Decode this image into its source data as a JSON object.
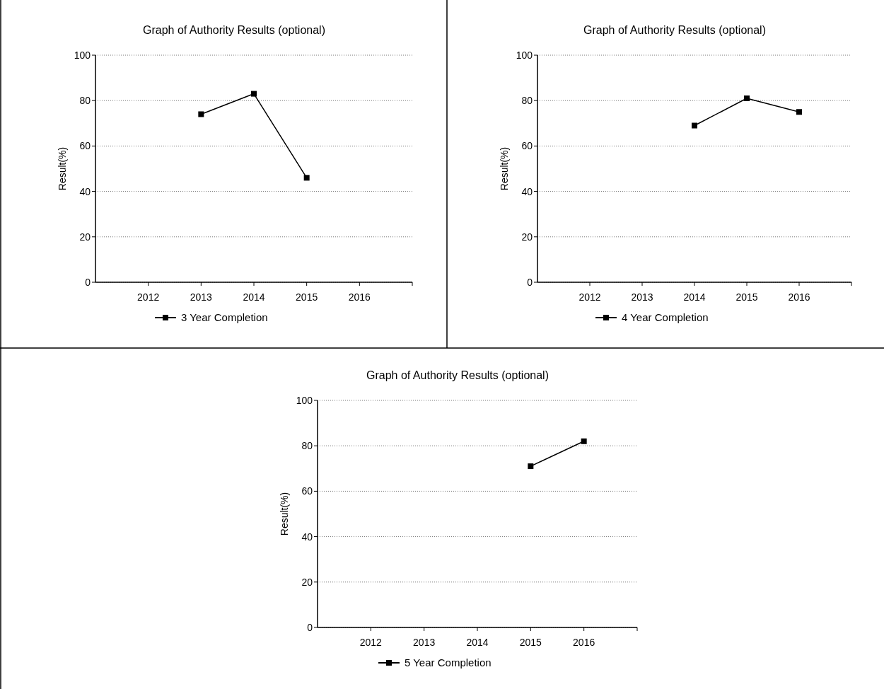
{
  "chart_data": [
    {
      "type": "line",
      "title": "Graph of Authority Results (optional)",
      "ylabel": "Result(%)",
      "categories": [
        "2012",
        "2013",
        "2014",
        "2015",
        "2016"
      ],
      "series": [
        {
          "name": "3 Year Completion",
          "color": "#000000",
          "values": [
            null,
            74,
            83,
            46,
            null
          ]
        }
      ],
      "ylim": [
        0,
        100
      ],
      "yticks": [
        0,
        20,
        40,
        60,
        80,
        100
      ],
      "grid": "y",
      "legend": "bottom",
      "marker": "square",
      "line_style": "solid"
    },
    {
      "type": "line",
      "title": "Graph of Authority Results (optional)",
      "ylabel": "Result(%)",
      "categories": [
        "2012",
        "2013",
        "2014",
        "2015",
        "2016"
      ],
      "series": [
        {
          "name": "4 Year Completion",
          "color": "#000000",
          "values": [
            null,
            null,
            69,
            81,
            75
          ]
        }
      ],
      "ylim": [
        0,
        100
      ],
      "yticks": [
        0,
        20,
        40,
        60,
        80,
        100
      ],
      "grid": "y",
      "legend": "bottom",
      "marker": "square",
      "line_style": "solid"
    },
    {
      "type": "line",
      "title": "Graph of Authority Results (optional)",
      "ylabel": "Result(%)",
      "categories": [
        "2012",
        "2013",
        "2014",
        "2015",
        "2016"
      ],
      "series": [
        {
          "name": "5 Year Completion",
          "color": "#000000",
          "values": [
            null,
            null,
            null,
            71,
            82
          ]
        }
      ],
      "ylim": [
        0,
        100
      ],
      "yticks": [
        0,
        20,
        40,
        60,
        80,
        100
      ],
      "grid": "y",
      "legend": "bottom",
      "marker": "square",
      "line_style": "solid"
    }
  ]
}
